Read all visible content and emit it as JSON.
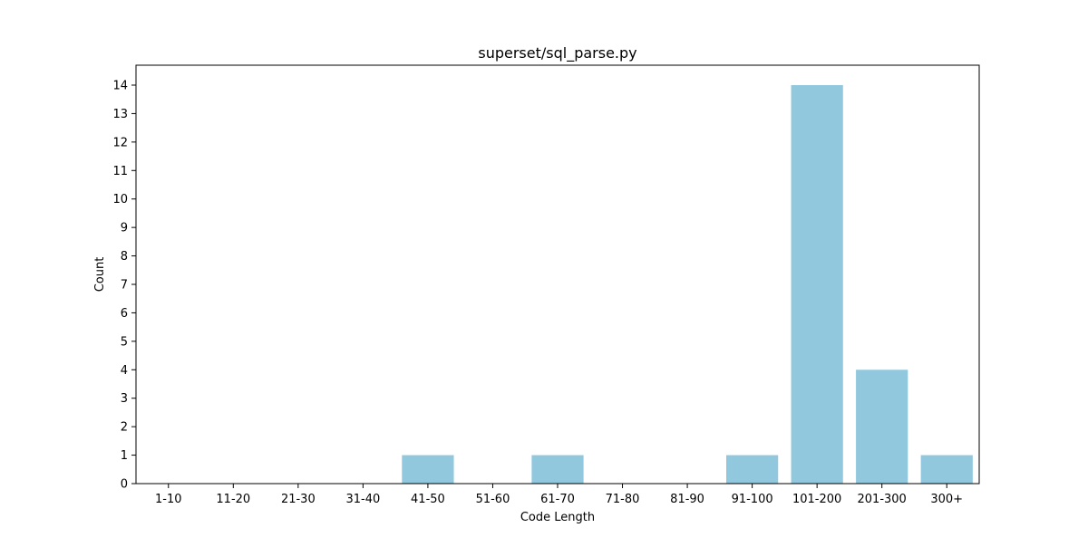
{
  "chart_data": {
    "type": "bar",
    "title": "superset/sql_parse.py",
    "xlabel": "Code Length",
    "ylabel": "Count",
    "categories": [
      "1-10",
      "11-20",
      "21-30",
      "31-40",
      "41-50",
      "51-60",
      "61-70",
      "71-80",
      "81-90",
      "91-100",
      "101-200",
      "201-300",
      "300+"
    ],
    "values": [
      0,
      0,
      0,
      0,
      1,
      0,
      1,
      0,
      0,
      1,
      14,
      4,
      1
    ],
    "ylim": [
      0,
      14.7
    ],
    "yticks": [
      "0",
      "1",
      "2",
      "3",
      "4",
      "5",
      "6",
      "7",
      "8",
      "9",
      "10",
      "11",
      "12",
      "13",
      "14"
    ],
    "bar_color": "#92c8de",
    "grid": false,
    "legend": "none"
  }
}
